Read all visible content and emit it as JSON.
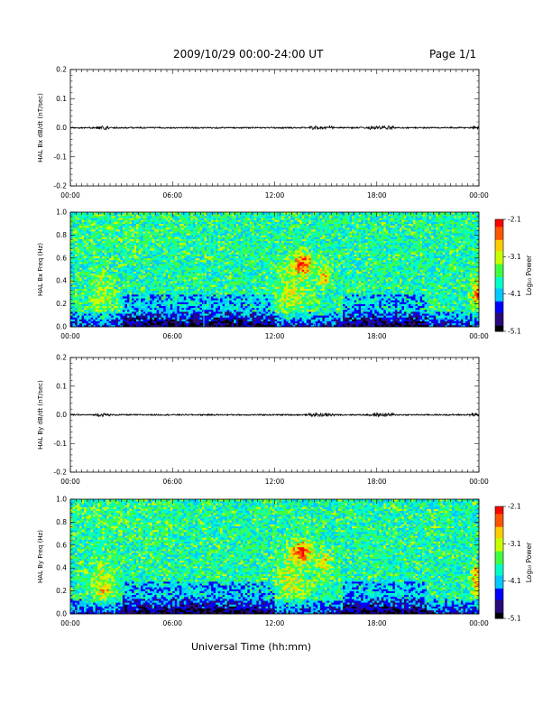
{
  "header": {
    "title": "2009/10/29  00:00-24:00 UT",
    "page": "Page 1/1"
  },
  "footer": {
    "xlabel": "Universal Time (hh:mm)"
  },
  "colorbar": {
    "label": "Log₁₀ Power",
    "ticks": [
      "-2.1",
      "-3.1",
      "-4.1",
      "-5.1"
    ],
    "colors": [
      "#000000",
      "#2a0a7a",
      "#0000ff",
      "#00c8ff",
      "#00ffc8",
      "#40ff40",
      "#c8ff00",
      "#ffcc00",
      "#ff5500",
      "#ff0000"
    ]
  },
  "chart_data": [
    {
      "type": "line",
      "ylabel": "HAL Bx dB/dt (nT/sec)",
      "xlim": [
        "00:00",
        "24:00"
      ],
      "ylim": [
        -0.2,
        0.2
      ],
      "xtick_labels": [
        "00:00",
        "06:00",
        "12:00",
        "18:00",
        "00:00"
      ],
      "ytick_labels": [
        "0.2",
        "0.1",
        "0.0",
        "-0.1",
        "-0.2"
      ],
      "series": [
        {
          "x": [
            "00:00",
            "06:00",
            "12:00",
            "18:00",
            "24:00"
          ],
          "values": [
            0.0,
            0.0,
            0.0,
            0.0,
            0.0
          ]
        }
      ]
    },
    {
      "type": "heatmap",
      "ylabel": "HAL Bx Freq (Hz)",
      "xlim": [
        "00:00",
        "24:00"
      ],
      "ylim": [
        0.0,
        1.0
      ],
      "xtick_labels": [
        "00:00",
        "06:00",
        "12:00",
        "18:00",
        "00:00"
      ],
      "ytick_labels": [
        "1.0",
        "0.8",
        "0.6",
        "0.4",
        "0.2",
        "0.0"
      ],
      "zlim": [
        -5.1,
        -2.1
      ]
    },
    {
      "type": "line",
      "ylabel": "HAL By dB/dt (nT/sec)",
      "xlim": [
        "00:00",
        "24:00"
      ],
      "ylim": [
        -0.2,
        0.2
      ],
      "xtick_labels": [
        "00:00",
        "06:00",
        "12:00",
        "18:00",
        "00:00"
      ],
      "ytick_labels": [
        "0.2",
        "0.1",
        "0.0",
        "-0.1",
        "-0.2"
      ],
      "series": [
        {
          "x": [
            "00:00",
            "06:00",
            "12:00",
            "18:00",
            "24:00"
          ],
          "values": [
            0.0,
            0.0,
            0.0,
            0.0,
            0.0
          ]
        }
      ]
    },
    {
      "type": "heatmap",
      "ylabel": "HAL By Freq (Hz)",
      "xlim": [
        "00:00",
        "24:00"
      ],
      "ylim": [
        0.0,
        1.0
      ],
      "xtick_labels": [
        "00:00",
        "06:00",
        "12:00",
        "18:00",
        "00:00"
      ],
      "ytick_labels": [
        "1.0",
        "0.8",
        "0.6",
        "0.4",
        "0.2",
        "0.0"
      ],
      "zlim": [
        -5.1,
        -2.1
      ]
    }
  ]
}
